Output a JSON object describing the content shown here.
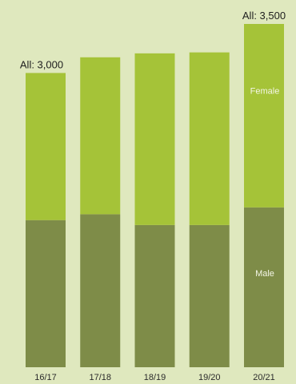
{
  "chart_data": {
    "type": "bar",
    "stacked": true,
    "categories": [
      "16/17",
      "17/18",
      "18/19",
      "19/20",
      "20/21"
    ],
    "series": [
      {
        "name": "Male",
        "values": [
          1500,
          1560,
          1450,
          1450,
          1630
        ],
        "color": "#7e8c48"
      },
      {
        "name": "Female",
        "values": [
          1500,
          1600,
          1750,
          1760,
          1870
        ],
        "color": "#a5c338"
      }
    ],
    "total_labels": [
      "All: 3,000",
      "",
      "",
      "",
      "All: 3,500"
    ],
    "segment_labels": {
      "female": "Female",
      "male": "Male"
    },
    "ylim": [
      0,
      3500
    ],
    "grid": false,
    "background": "#dfe8be"
  }
}
